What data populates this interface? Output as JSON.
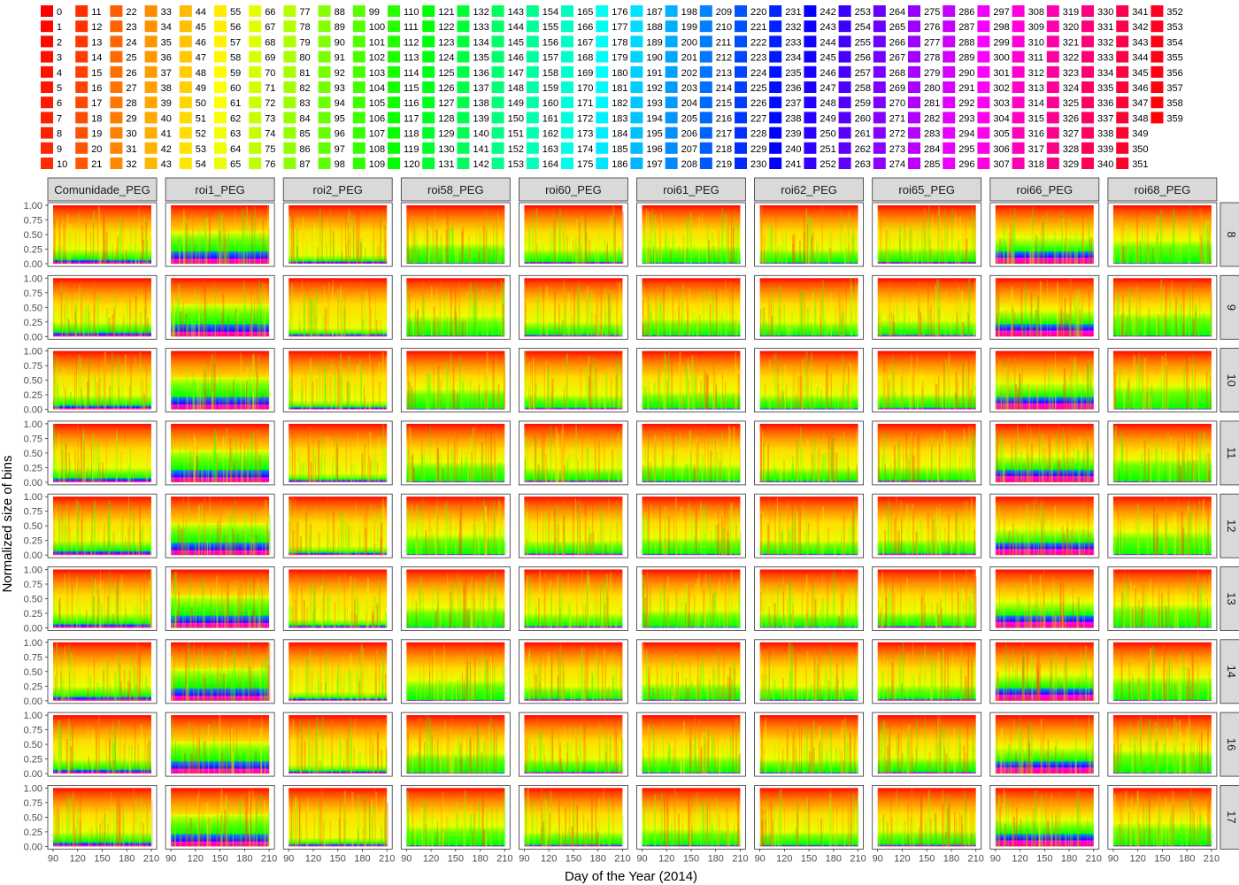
{
  "chart_data": {
    "type": "area",
    "subtype": "stacked-area-faceted",
    "xlabel": "Day of the Year (2014)",
    "ylabel": "Normalized size of bins",
    "xlim": [
      90,
      210
    ],
    "xticks": [
      90,
      120,
      150,
      180,
      210
    ],
    "ylim": [
      0,
      1
    ],
    "yticks": [
      "0.00",
      "0.25",
      "0.50",
      "0.75",
      "1.00"
    ],
    "facet_columns": [
      "Comunidade_PEG",
      "roi1_PEG",
      "roi2_PEG",
      "roi58_PEG",
      "roi60_PEG",
      "roi61_PEG",
      "roi62_PEG",
      "roi65_PEG",
      "roi66_PEG",
      "roi68_PEG"
    ],
    "facet_rows": [
      "8",
      "9",
      "10",
      "11",
      "12",
      "13",
      "14",
      "16",
      "17"
    ],
    "legend": {
      "placement": "top",
      "palette": "rainbow (hue 0-359)",
      "entries": [
        "0",
        "1",
        "2",
        "3",
        "4",
        "5",
        "6",
        "7",
        "8",
        "9",
        "10",
        "11",
        "12",
        "13",
        "14",
        "15",
        "16",
        "17",
        "18",
        "19",
        "20",
        "21",
        "22",
        "23",
        "24",
        "25",
        "26",
        "27",
        "28",
        "29",
        "30",
        "31",
        "32",
        "33",
        "34",
        "35",
        "36",
        "37",
        "38",
        "39",
        "40",
        "41",
        "42",
        "43",
        "44",
        "45",
        "46",
        "47",
        "48",
        "49",
        "50",
        "51",
        "52",
        "53",
        "54",
        "55",
        "56",
        "57",
        "58",
        "59",
        "60",
        "61",
        "62",
        "63",
        "64",
        "65",
        "66",
        "67",
        "68",
        "69",
        "70",
        "71",
        "72",
        "73",
        "74",
        "75",
        "76",
        "77",
        "78",
        "79",
        "80",
        "81",
        "82",
        "83",
        "84",
        "85",
        "86",
        "87",
        "88",
        "89",
        "90",
        "91",
        "92",
        "93",
        "94",
        "95",
        "96",
        "97",
        "98",
        "99",
        "100",
        "101",
        "102",
        "103",
        "104",
        "105",
        "106",
        "107",
        "108",
        "109",
        "110",
        "111",
        "112",
        "113",
        "114",
        "115",
        "116",
        "117",
        "118",
        "119",
        "120",
        "121",
        "122",
        "123",
        "124",
        "125",
        "126",
        "127",
        "128",
        "129",
        "130",
        "131",
        "132",
        "133",
        "134",
        "135",
        "136",
        "137",
        "138",
        "139",
        "140",
        "141",
        "142",
        "143",
        "144",
        "145",
        "146",
        "147",
        "148",
        "149",
        "150",
        "151",
        "152",
        "153",
        "154",
        "155",
        "156",
        "157",
        "158",
        "159",
        "160",
        "161",
        "162",
        "163",
        "164",
        "165",
        "166",
        "167",
        "168",
        "169",
        "170",
        "171",
        "172",
        "173",
        "174",
        "175",
        "176",
        "177",
        "178",
        "179",
        "180",
        "181",
        "182",
        "183",
        "184",
        "185",
        "186",
        "187",
        "188",
        "189",
        "190",
        "191",
        "192",
        "193",
        "194",
        "195",
        "196",
        "197",
        "198",
        "199",
        "200",
        "201",
        "202",
        "203",
        "204",
        "205",
        "206",
        "207",
        "208",
        "209",
        "210",
        "211",
        "212",
        "213",
        "214",
        "215",
        "216",
        "217",
        "218",
        "219",
        "220",
        "221",
        "222",
        "223",
        "224",
        "225",
        "226",
        "227",
        "228",
        "229",
        "230",
        "231",
        "232",
        "233",
        "234",
        "235",
        "236",
        "237",
        "238",
        "239",
        "240",
        "241",
        "242",
        "243",
        "244",
        "245",
        "246",
        "247",
        "248",
        "249",
        "250",
        "251",
        "252",
        "253",
        "254",
        "255",
        "256",
        "257",
        "258",
        "259",
        "260",
        "261",
        "262",
        "263",
        "264",
        "265",
        "266",
        "267",
        "268",
        "269",
        "270",
        "271",
        "272",
        "273",
        "274",
        "275",
        "276",
        "277",
        "278",
        "279",
        "280",
        "281",
        "282",
        "283",
        "284",
        "285",
        "286",
        "287",
        "288",
        "289",
        "290",
        "291",
        "292",
        "293",
        "294",
        "295",
        "296",
        "297",
        "298",
        "299",
        "300",
        "301",
        "302",
        "303",
        "304",
        "305",
        "306",
        "307",
        "308",
        "309",
        "310",
        "311",
        "312",
        "313",
        "314",
        "315",
        "316",
        "317",
        "318",
        "319",
        "320",
        "321",
        "322",
        "323",
        "324",
        "325",
        "326",
        "327",
        "328",
        "329",
        "330",
        "331",
        "332",
        "333",
        "334",
        "335",
        "336",
        "337",
        "338",
        "339",
        "340",
        "341",
        "342",
        "343",
        "344",
        "345",
        "346",
        "347",
        "348",
        "349",
        "350",
        "351",
        "352",
        "353",
        "354",
        "355",
        "356",
        "357",
        "358",
        "359"
      ]
    },
    "series": [
      {
        "hue_range": [
          0,
          30
        ],
        "approx_share": 0.4
      },
      {
        "hue_range": [
          30,
          60
        ],
        "approx_share": 0.35
      },
      {
        "hue_range": [
          60,
          120
        ],
        "approx_share": 0.18
      },
      {
        "hue_range": [
          120,
          240
        ],
        "approx_share": 0.05
      },
      {
        "hue_range": [
          240,
          359
        ],
        "approx_share": 0.02
      }
    ]
  },
  "panel_profiles": {
    "Comunidade_PEG": {
      "green_top": 0.2,
      "blue_top": 0.06,
      "magenta_top": 0.02
    },
    "roi1_PEG": {
      "green_top": 0.5,
      "blue_top": 0.2,
      "magenta_top": 0.08
    },
    "roi2_PEG": {
      "green_top": 0.1,
      "blue_top": 0.03,
      "magenta_top": 0.01
    },
    "roi58_PEG": {
      "green_top": 0.3,
      "blue_top": 0.0,
      "magenta_top": 0.0
    },
    "roi60_PEG": {
      "green_top": 0.2,
      "blue_top": 0.02,
      "magenta_top": 0.01
    },
    "roi61_PEG": {
      "green_top": 0.25,
      "blue_top": 0.01,
      "magenta_top": 0.0
    },
    "roi62_PEG": {
      "green_top": 0.2,
      "blue_top": 0.01,
      "magenta_top": 0.0
    },
    "roi65_PEG": {
      "green_top": 0.22,
      "blue_top": 0.02,
      "magenta_top": 0.01
    },
    "roi66_PEG": {
      "green_top": 0.4,
      "blue_top": 0.2,
      "magenta_top": 0.1
    },
    "roi68_PEG": {
      "green_top": 0.35,
      "blue_top": 0.0,
      "magenta_top": 0.0
    }
  }
}
